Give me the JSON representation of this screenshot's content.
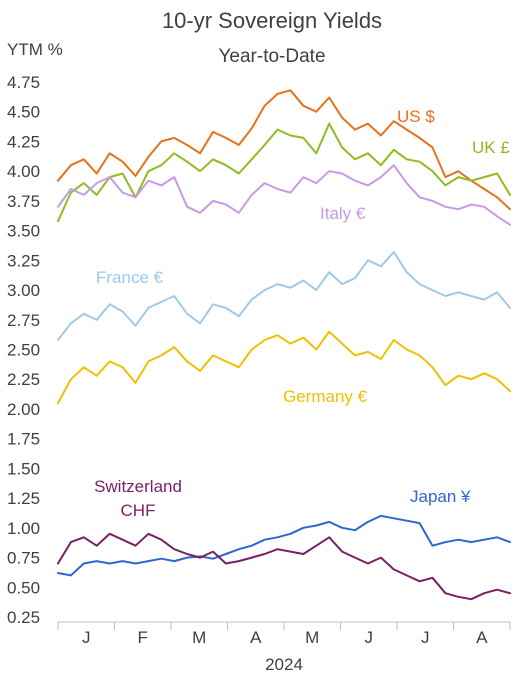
{
  "chart_data": {
    "type": "line",
    "title": "10-yr Sovereign Yields",
    "subtitle": "Year-to-Date",
    "ylabel": "YTM %",
    "ylim": [
      0.25,
      4.75
    ],
    "yticks": [
      "0.25",
      "0.50",
      "0.75",
      "1.00",
      "1.25",
      "1.50",
      "1.75",
      "2.00",
      "2.25",
      "2.50",
      "2.75",
      "3.00",
      "3.25",
      "3.50",
      "3.75",
      "4.00",
      "4.25",
      "4.50",
      "4.75"
    ],
    "months": [
      "J",
      "F",
      "M",
      "A",
      "M",
      "J",
      "J",
      "A"
    ],
    "year_label": "2024",
    "x_unit": "week of year",
    "x_range": [
      0,
      35
    ],
    "grid": false,
    "legend": "inline labels",
    "series": [
      {
        "name": "US $",
        "color": "#e8711c",
        "x": [
          0,
          1,
          2,
          3,
          4,
          5,
          6,
          7,
          8,
          9,
          10,
          11,
          12,
          13,
          14,
          15,
          16,
          17,
          18,
          19,
          20,
          21,
          22,
          23,
          24,
          25,
          26,
          27,
          28,
          29,
          30,
          31,
          32,
          33,
          34,
          35
        ],
        "values": [
          3.92,
          4.05,
          4.1,
          3.98,
          4.15,
          4.08,
          3.96,
          4.12,
          4.25,
          4.28,
          4.22,
          4.15,
          4.33,
          4.28,
          4.22,
          4.36,
          4.55,
          4.65,
          4.68,
          4.55,
          4.5,
          4.62,
          4.45,
          4.35,
          4.4,
          4.3,
          4.42,
          4.35,
          4.28,
          4.2,
          3.95,
          4.0,
          3.92,
          3.85,
          3.78,
          3.68
        ]
      },
      {
        "name": "UK £",
        "color": "#8fbc1f",
        "x": [
          0,
          1,
          2,
          3,
          4,
          5,
          6,
          7,
          8,
          9,
          10,
          11,
          12,
          13,
          14,
          15,
          16,
          17,
          18,
          19,
          20,
          21,
          22,
          23,
          24,
          25,
          26,
          27,
          28,
          29,
          30,
          31,
          32,
          33,
          34,
          35
        ],
        "values": [
          3.58,
          3.82,
          3.9,
          3.8,
          3.95,
          3.98,
          3.78,
          4.0,
          4.05,
          4.15,
          4.08,
          4.0,
          4.1,
          4.05,
          3.98,
          4.1,
          4.22,
          4.35,
          4.3,
          4.28,
          4.15,
          4.4,
          4.2,
          4.1,
          4.15,
          4.05,
          4.18,
          4.1,
          4.08,
          4.0,
          3.88,
          3.95,
          3.92,
          3.95,
          3.98,
          3.8
        ]
      },
      {
        "name": "Italy €",
        "color": "#c89ae6",
        "x": [
          0,
          1,
          2,
          3,
          4,
          5,
          6,
          7,
          8,
          9,
          10,
          11,
          12,
          13,
          14,
          15,
          16,
          17,
          18,
          19,
          20,
          21,
          22,
          23,
          24,
          25,
          26,
          27,
          28,
          29,
          30,
          31,
          32,
          33,
          34,
          35
        ],
        "values": [
          3.7,
          3.85,
          3.8,
          3.9,
          3.95,
          3.82,
          3.78,
          3.92,
          3.88,
          3.95,
          3.7,
          3.65,
          3.75,
          3.72,
          3.65,
          3.8,
          3.9,
          3.85,
          3.82,
          3.95,
          3.9,
          4.0,
          3.98,
          3.92,
          3.88,
          3.95,
          4.05,
          3.9,
          3.78,
          3.75,
          3.7,
          3.68,
          3.72,
          3.7,
          3.62,
          3.55
        ]
      },
      {
        "name": "France €",
        "color": "#9ecae8",
        "x": [
          0,
          1,
          2,
          3,
          4,
          5,
          6,
          7,
          8,
          9,
          10,
          11,
          12,
          13,
          14,
          15,
          16,
          17,
          18,
          19,
          20,
          21,
          22,
          23,
          24,
          25,
          26,
          27,
          28,
          29,
          30,
          31,
          32,
          33,
          34,
          35
        ],
        "values": [
          2.58,
          2.72,
          2.8,
          2.75,
          2.88,
          2.82,
          2.7,
          2.85,
          2.9,
          2.95,
          2.8,
          2.72,
          2.88,
          2.85,
          2.78,
          2.92,
          3.0,
          3.05,
          3.02,
          3.08,
          3.0,
          3.15,
          3.05,
          3.1,
          3.25,
          3.2,
          3.32,
          3.15,
          3.05,
          3.0,
          2.95,
          2.98,
          2.95,
          2.92,
          2.98,
          2.85
        ]
      },
      {
        "name": "Germany €",
        "color": "#f0c000",
        "x": [
          0,
          1,
          2,
          3,
          4,
          5,
          6,
          7,
          8,
          9,
          10,
          11,
          12,
          13,
          14,
          15,
          16,
          17,
          18,
          19,
          20,
          21,
          22,
          23,
          24,
          25,
          26,
          27,
          28,
          29,
          30,
          31,
          32,
          33,
          34,
          35
        ],
        "values": [
          2.05,
          2.25,
          2.35,
          2.28,
          2.4,
          2.35,
          2.22,
          2.4,
          2.45,
          2.52,
          2.4,
          2.32,
          2.45,
          2.4,
          2.35,
          2.5,
          2.58,
          2.62,
          2.55,
          2.6,
          2.5,
          2.65,
          2.55,
          2.45,
          2.48,
          2.42,
          2.58,
          2.5,
          2.45,
          2.35,
          2.2,
          2.28,
          2.25,
          2.3,
          2.25,
          2.15
        ]
      },
      {
        "name": "Japan ¥",
        "color": "#2e67d1",
        "x": [
          0,
          1,
          2,
          3,
          4,
          5,
          6,
          7,
          8,
          9,
          10,
          11,
          12,
          13,
          14,
          15,
          16,
          17,
          18,
          19,
          20,
          21,
          22,
          23,
          24,
          25,
          26,
          27,
          28,
          29,
          30,
          31,
          32,
          33,
          34,
          35
        ],
        "values": [
          0.62,
          0.6,
          0.7,
          0.72,
          0.7,
          0.72,
          0.7,
          0.72,
          0.74,
          0.72,
          0.75,
          0.76,
          0.74,
          0.78,
          0.82,
          0.85,
          0.9,
          0.92,
          0.95,
          1.0,
          1.02,
          1.05,
          1.0,
          0.98,
          1.05,
          1.1,
          1.08,
          1.06,
          1.04,
          0.85,
          0.88,
          0.9,
          0.88,
          0.9,
          0.92,
          0.88
        ]
      },
      {
        "name": "Switzerland CHF",
        "color": "#7b1f65",
        "x": [
          0,
          1,
          2,
          3,
          4,
          5,
          6,
          7,
          8,
          9,
          10,
          11,
          12,
          13,
          14,
          15,
          16,
          17,
          18,
          19,
          20,
          21,
          22,
          23,
          24,
          25,
          26,
          27,
          28,
          29,
          30,
          31,
          32,
          33,
          34,
          35
        ],
        "values": [
          0.7,
          0.88,
          0.92,
          0.85,
          0.95,
          0.9,
          0.85,
          0.95,
          0.9,
          0.82,
          0.78,
          0.75,
          0.8,
          0.7,
          0.72,
          0.75,
          0.78,
          0.82,
          0.8,
          0.78,
          0.85,
          0.92,
          0.8,
          0.75,
          0.7,
          0.75,
          0.65,
          0.6,
          0.55,
          0.58,
          0.45,
          0.42,
          0.4,
          0.45,
          0.48,
          0.45
        ]
      }
    ]
  }
}
